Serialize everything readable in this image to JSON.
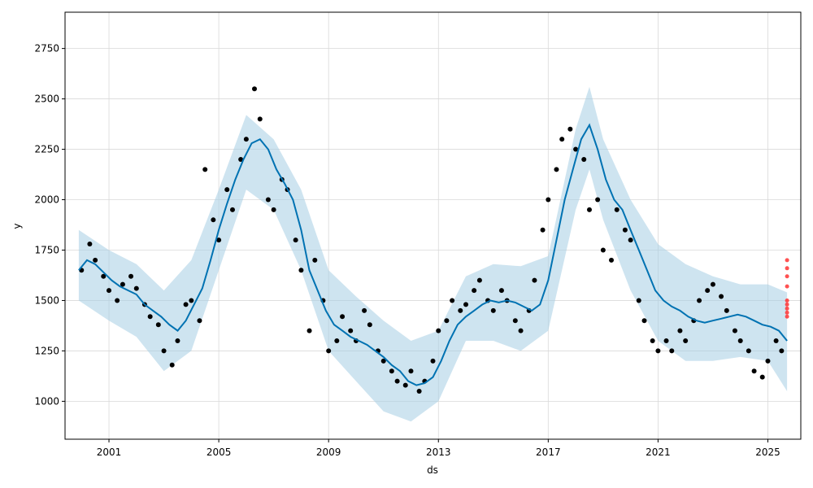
{
  "chart_data": {
    "type": "scatter",
    "title": "",
    "xlabel": "ds",
    "ylabel": "y",
    "xlim": [
      1999.4,
      2026.2
    ],
    "ylim": [
      812,
      2930
    ],
    "grid": true,
    "x_ticks": [
      2001,
      2005,
      2009,
      2013,
      2017,
      2021,
      2025
    ],
    "y_ticks": [
      1000,
      1250,
      1500,
      1750,
      2000,
      2250,
      2500,
      2750
    ],
    "colors": {
      "observed": "#000000",
      "forecast": "#0072b2",
      "interval": "#a6cee3",
      "flagged": "#ff3333",
      "grid": "#d9d9d9"
    },
    "series": [
      {
        "role": "observed",
        "style": "points",
        "x": [
          2000.0,
          2000.3,
          2000.5,
          2000.8,
          2001.0,
          2001.3,
          2001.5,
          2001.8,
          2002.0,
          2002.3,
          2002.5,
          2002.8,
          2003.0,
          2003.3,
          2003.5,
          2003.8,
          2004.0,
          2004.3,
          2004.5,
          2004.8,
          2005.0,
          2005.3,
          2005.5,
          2005.8,
          2006.0,
          2006.3,
          2006.5,
          2006.8,
          2007.0,
          2007.3,
          2007.5,
          2007.8,
          2008.0,
          2008.3,
          2008.5,
          2008.8,
          2009.0,
          2009.3,
          2009.5,
          2009.8,
          2010.0,
          2010.3,
          2010.5,
          2010.8,
          2011.0,
          2011.3,
          2011.5,
          2011.8,
          2012.0,
          2012.3,
          2012.5,
          2012.8,
          2013.0,
          2013.3,
          2013.5,
          2013.8,
          2014.0,
          2014.3,
          2014.5,
          2014.8,
          2015.0,
          2015.3,
          2015.5,
          2015.8,
          2016.0,
          2016.3,
          2016.5,
          2016.8,
          2017.0,
          2017.3,
          2017.5,
          2017.8,
          2018.0,
          2018.3,
          2018.5,
          2018.8,
          2019.0,
          2019.3,
          2019.5,
          2019.8,
          2020.0,
          2020.3,
          2020.5,
          2020.8,
          2021.0,
          2021.3,
          2021.5,
          2021.8,
          2022.0,
          2022.3,
          2022.5,
          2022.8,
          2023.0,
          2023.3,
          2023.5,
          2023.8,
          2024.0,
          2024.3,
          2024.5,
          2024.8,
          2025.0,
          2025.3,
          2025.5
        ],
        "y": [
          1650,
          1780,
          1700,
          1620,
          1550,
          1500,
          1580,
          1620,
          1560,
          1480,
          1420,
          1380,
          1250,
          1180,
          1300,
          1480,
          1500,
          1400,
          2150,
          1900,
          1800,
          2050,
          1950,
          2200,
          2300,
          2550,
          2400,
          2000,
          1950,
          2100,
          2050,
          1800,
          1650,
          1350,
          1700,
          1500,
          1250,
          1300,
          1420,
          1350,
          1300,
          1450,
          1380,
          1250,
          1200,
          1150,
          1100,
          1080,
          1150,
          1050,
          1100,
          1200,
          1350,
          1400,
          1500,
          1450,
          1480,
          1550,
          1600,
          1500,
          1450,
          1550,
          1500,
          1400,
          1350,
          1450,
          1600,
          1850,
          2000,
          2150,
          2300,
          2350,
          2250,
          2200,
          1950,
          2000,
          1750,
          1700,
          1950,
          1850,
          1800,
          1500,
          1400,
          1300,
          1250,
          1300,
          1250,
          1350,
          1300,
          1400,
          1500,
          1550,
          1580,
          1520,
          1450,
          1350,
          1300,
          1250,
          1150,
          1120,
          1200,
          1300,
          1250
        ]
      },
      {
        "role": "forecast",
        "style": "line",
        "x": [
          1999.9,
          2000.2,
          2000.5,
          2000.8,
          2001.1,
          2001.4,
          2001.7,
          2002.0,
          2002.3,
          2002.6,
          2002.9,
          2003.2,
          2003.5,
          2003.8,
          2004.1,
          2004.4,
          2004.7,
          2005.0,
          2005.3,
          2005.6,
          2005.9,
          2006.2,
          2006.5,
          2006.8,
          2007.1,
          2007.4,
          2007.7,
          2008.0,
          2008.3,
          2008.6,
          2008.9,
          2009.2,
          2009.5,
          2009.8,
          2010.1,
          2010.4,
          2010.7,
          2011.0,
          2011.3,
          2011.6,
          2011.9,
          2012.2,
          2012.5,
          2012.8,
          2013.1,
          2013.4,
          2013.7,
          2014.0,
          2014.3,
          2014.6,
          2014.9,
          2015.2,
          2015.5,
          2015.8,
          2016.1,
          2016.4,
          2016.7,
          2017.0,
          2017.3,
          2017.6,
          2017.9,
          2018.2,
          2018.5,
          2018.8,
          2019.1,
          2019.4,
          2019.7,
          2020.0,
          2020.3,
          2020.6,
          2020.9,
          2021.2,
          2021.5,
          2021.8,
          2022.1,
          2022.4,
          2022.7,
          2023.0,
          2023.3,
          2023.6,
          2023.9,
          2024.2,
          2024.5,
          2024.8,
          2025.1,
          2025.4,
          2025.7
        ],
        "y": [
          1650,
          1700,
          1680,
          1640,
          1600,
          1570,
          1550,
          1530,
          1480,
          1450,
          1420,
          1380,
          1350,
          1400,
          1480,
          1560,
          1700,
          1850,
          1980,
          2100,
          2200,
          2280,
          2300,
          2250,
          2150,
          2080,
          2000,
          1850,
          1650,
          1550,
          1450,
          1380,
          1350,
          1320,
          1300,
          1280,
          1250,
          1220,
          1180,
          1150,
          1100,
          1080,
          1090,
          1120,
          1200,
          1300,
          1380,
          1420,
          1450,
          1480,
          1500,
          1490,
          1500,
          1490,
          1470,
          1450,
          1480,
          1600,
          1800,
          2000,
          2150,
          2300,
          2370,
          2250,
          2100,
          2000,
          1950,
          1850,
          1750,
          1650,
          1550,
          1500,
          1470,
          1450,
          1420,
          1400,
          1390,
          1400,
          1410,
          1420,
          1430,
          1420,
          1400,
          1380,
          1370,
          1350,
          1300
        ]
      },
      {
        "role": "interval",
        "style": "band",
        "x": [
          1999.9,
          2001.0,
          2002.0,
          2003.0,
          2004.0,
          2005.0,
          2006.0,
          2007.0,
          2008.0,
          2009.0,
          2010.0,
          2011.0,
          2012.0,
          2013.0,
          2014.0,
          2015.0,
          2016.0,
          2017.0,
          2018.0,
          2018.5,
          2019.0,
          2020.0,
          2021.0,
          2022.0,
          2023.0,
          2024.0,
          2025.0,
          2025.7
        ],
        "upper": [
          1850,
          1750,
          1680,
          1550,
          1700,
          2050,
          2420,
          2300,
          2050,
          1650,
          1520,
          1400,
          1300,
          1350,
          1620,
          1680,
          1670,
          1720,
          2350,
          2560,
          2300,
          2000,
          1780,
          1680,
          1620,
          1580,
          1580,
          1540
        ],
        "lower": [
          1500,
          1400,
          1320,
          1150,
          1250,
          1650,
          2050,
          1950,
          1650,
          1250,
          1100,
          950,
          900,
          1000,
          1300,
          1300,
          1250,
          1350,
          1950,
          2150,
          1900,
          1550,
          1300,
          1200,
          1200,
          1220,
          1200,
          1050
        ]
      },
      {
        "role": "flagged",
        "style": "points",
        "x": [
          2025.7,
          2025.7,
          2025.7,
          2025.7,
          2025.7,
          2025.7,
          2025.7,
          2025.7,
          2025.7
        ],
        "y": [
          1700,
          1660,
          1620,
          1570,
          1500,
          1480,
          1460,
          1440,
          1420
        ]
      }
    ]
  }
}
